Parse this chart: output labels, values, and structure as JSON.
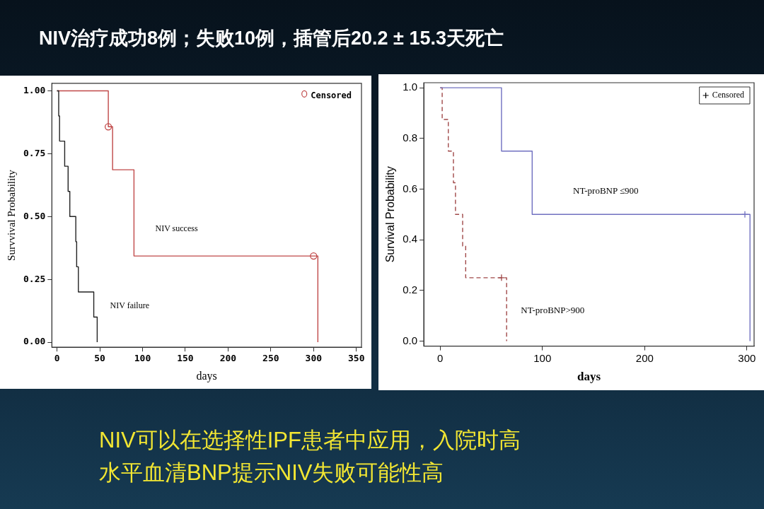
{
  "chart_data": [
    {
      "type": "other",
      "title": "NIV治疗成功8例；失败10例，插管后20.2 ± 15.3天死亡",
      "annotations": [
        "NIV可以在选择性IPF患者中应用，入院时高",
        "水平血清BNP提示NIV失败可能性高"
      ]
    },
    {
      "type": "step",
      "xlabel": "days",
      "ylabel": "Survvival Probability",
      "xlim": [
        -6,
        356
      ],
      "ylim": [
        -0.02,
        1.03
      ],
      "xticks": [
        0,
        50,
        100,
        150,
        200,
        250,
        300,
        350
      ],
      "yticks": [
        {
          "value": 0,
          "label": "0.00"
        },
        {
          "value": 0.25,
          "label": "0.25"
        },
        {
          "value": 0.5,
          "label": "0.50"
        },
        {
          "value": 0.75,
          "label": "0.75"
        },
        {
          "value": 1,
          "label": "1.00"
        }
      ],
      "grid": false,
      "legend": "top right",
      "series": [
        {
          "type": "step",
          "color": "#222222",
          "x": [
            0,
            2,
            3,
            9,
            13,
            15,
            22,
            23,
            25,
            43,
            47
          ],
          "values": [
            1,
            0.9,
            0.8,
            0.7,
            0.6,
            0.5,
            0.4,
            0.3,
            0.2,
            0.1,
            0
          ]
        },
        {
          "type": "step",
          "color": "#c04848",
          "x": [
            0,
            60,
            65,
            90,
            305
          ],
          "values": [
            1,
            0.857,
            0.686,
            0.343,
            0
          ]
        },
        {
          "type": "scatter",
          "name": "Censored",
          "color": "#c04848",
          "marker": "circle",
          "x": [
            60,
            300
          ],
          "values": [
            0.857,
            0.343
          ]
        }
      ],
      "annotations": [
        "NIV success",
        "NIV failure"
      ]
    },
    {
      "type": "step",
      "xlabel": "days",
      "ylabel": "Survival Probability",
      "xlim": [
        -16,
        307
      ],
      "ylim": [
        -0.02,
        1.02
      ],
      "xticks": [
        0,
        100,
        200,
        300
      ],
      "yticks": [
        {
          "value": 0,
          "label": "0.0"
        },
        0.2,
        0.4,
        0.6,
        0.8,
        {
          "value": 1,
          "label": "1.0"
        }
      ],
      "grid": false,
      "legend": "top right",
      "series": [
        {
          "type": "step",
          "color": "#7070c0",
          "x": [
            0,
            60,
            90,
            303
          ],
          "values": [
            1,
            0.75,
            0.5,
            0
          ]
        },
        {
          "type": "step",
          "color": "#a04848",
          "line_style": "dashed",
          "x": [
            0,
            2,
            8,
            13,
            15,
            22,
            25,
            65
          ],
          "values": [
            1,
            0.875,
            0.75,
            0.625,
            0.5,
            0.375,
            0.25,
            0
          ]
        },
        {
          "type": "scatter",
          "name": "Censored",
          "color": "#000000",
          "colors": [
            "#7070c0",
            "#a04848"
          ],
          "marker": "cross",
          "x": [
            298,
            60
          ],
          "values": [
            0.5,
            0.25
          ]
        }
      ],
      "annotations": [
        "NT-proBNP ≤900",
        "NT-proBNP>900"
      ]
    }
  ]
}
